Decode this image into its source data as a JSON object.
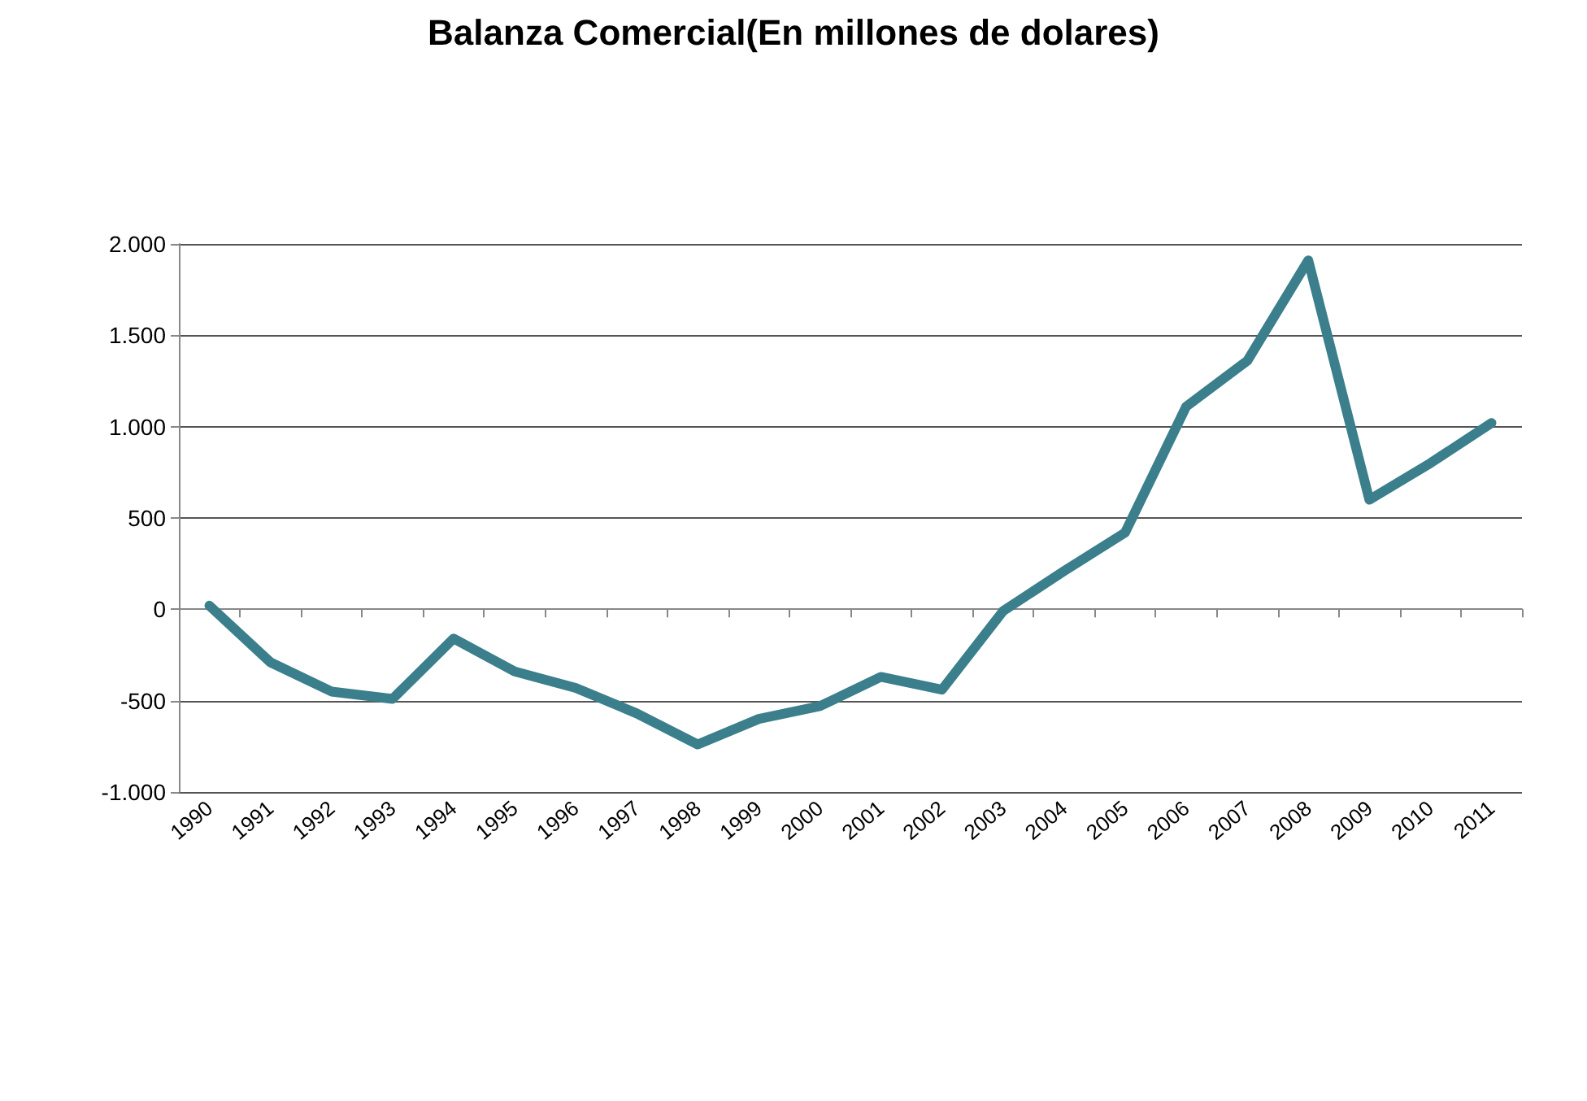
{
  "chart_data": {
    "type": "line",
    "title": "Balanza Comercial(En millones de dolares)",
    "categories": [
      "1990",
      "1991",
      "1992",
      "1993",
      "1994",
      "1995",
      "1996",
      "1997",
      "1998",
      "1999",
      "2000",
      "2001",
      "2002",
      "2003",
      "2004",
      "2005",
      "2006",
      "2007",
      "2008",
      "2009",
      "2010",
      "2011"
    ],
    "series": [
      {
        "color": "#3b7f8c",
        "values": [
          20,
          -290,
          -450,
          -490,
          -160,
          -340,
          -430,
          -570,
          -740,
          -600,
          -530,
          -370,
          -440,
          -10,
          210,
          420,
          1110,
          1360,
          1910,
          600,
          800,
          1020
        ]
      }
    ],
    "ylim": [
      -1000,
      2000
    ],
    "yticks": [
      {
        "value": -1000,
        "label": "-1.000"
      },
      {
        "value": -500,
        "label": "-500"
      },
      0,
      {
        "value": 500,
        "label": "500"
      },
      {
        "value": 1000,
        "label": "1.000"
      },
      {
        "value": 1500,
        "label": "1.500"
      },
      {
        "value": 2000,
        "label": "2.000"
      }
    ],
    "grid": "y",
    "marker": "none",
    "line_style": "solid"
  }
}
